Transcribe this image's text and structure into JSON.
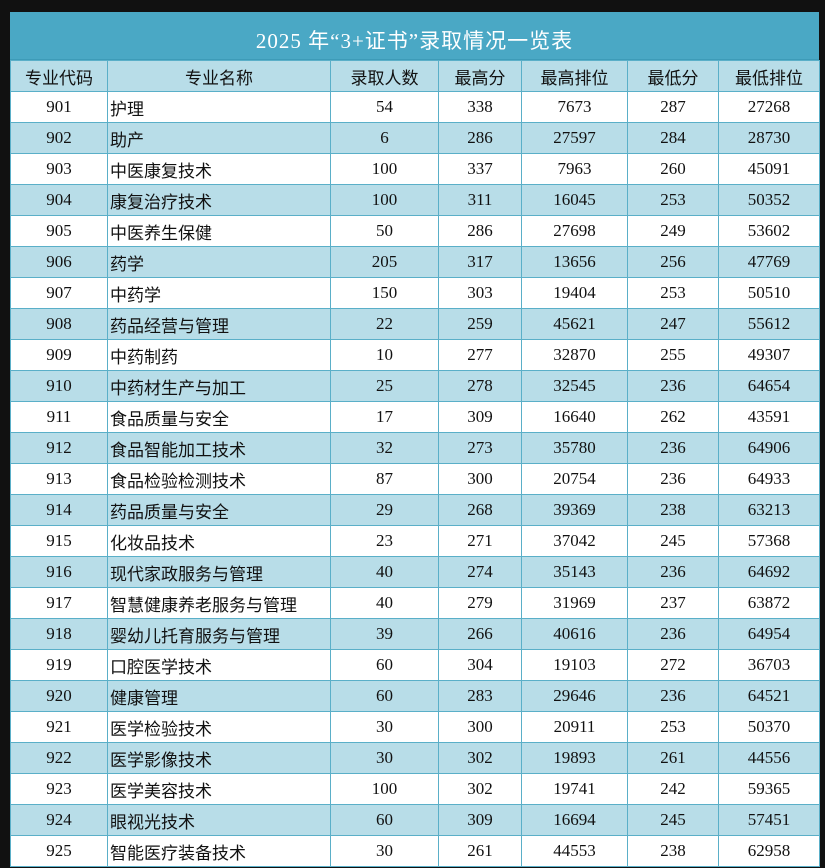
{
  "title": "2025 年“3+证书”录取情况一览表",
  "colors": {
    "title_bg": "#4aa8c5",
    "header_bg": "#b8dde8",
    "alt_row_bg": "#b8dde8",
    "grid": "#5aafc8"
  },
  "table": {
    "headers": [
      "专业代码",
      "专业名称",
      "录取人数",
      "最高分",
      "最高排位",
      "最低分",
      "最低排位"
    ],
    "rows": [
      [
        "901",
        "护理",
        "54",
        "338",
        "7673",
        "287",
        "27268"
      ],
      [
        "902",
        "助产",
        "6",
        "286",
        "27597",
        "284",
        "28730"
      ],
      [
        "903",
        "中医康复技术",
        "100",
        "337",
        "7963",
        "260",
        "45091"
      ],
      [
        "904",
        "康复治疗技术",
        "100",
        "311",
        "16045",
        "253",
        "50352"
      ],
      [
        "905",
        "中医养生保健",
        "50",
        "286",
        "27698",
        "249",
        "53602"
      ],
      [
        "906",
        "药学",
        "205",
        "317",
        "13656",
        "256",
        "47769"
      ],
      [
        "907",
        "中药学",
        "150",
        "303",
        "19404",
        "253",
        "50510"
      ],
      [
        "908",
        "药品经营与管理",
        "22",
        "259",
        "45621",
        "247",
        "55612"
      ],
      [
        "909",
        "中药制药",
        "10",
        "277",
        "32870",
        "255",
        "49307"
      ],
      [
        "910",
        "中药材生产与加工",
        "25",
        "278",
        "32545",
        "236",
        "64654"
      ],
      [
        "911",
        "食品质量与安全",
        "17",
        "309",
        "16640",
        "262",
        "43591"
      ],
      [
        "912",
        "食品智能加工技术",
        "32",
        "273",
        "35780",
        "236",
        "64906"
      ],
      [
        "913",
        "食品检验检测技术",
        "87",
        "300",
        "20754",
        "236",
        "64933"
      ],
      [
        "914",
        "药品质量与安全",
        "29",
        "268",
        "39369",
        "238",
        "63213"
      ],
      [
        "915",
        "化妆品技术",
        "23",
        "271",
        "37042",
        "245",
        "57368"
      ],
      [
        "916",
        "现代家政服务与管理",
        "40",
        "274",
        "35143",
        "236",
        "64692"
      ],
      [
        "917",
        "智慧健康养老服务与管理",
        "40",
        "279",
        "31969",
        "237",
        "63872"
      ],
      [
        "918",
        "婴幼儿托育服务与管理",
        "39",
        "266",
        "40616",
        "236",
        "64954"
      ],
      [
        "919",
        "口腔医学技术",
        "60",
        "304",
        "19103",
        "272",
        "36703"
      ],
      [
        "920",
        "健康管理",
        "60",
        "283",
        "29646",
        "236",
        "64521"
      ],
      [
        "921",
        "医学检验技术",
        "30",
        "300",
        "20911",
        "253",
        "50370"
      ],
      [
        "922",
        "医学影像技术",
        "30",
        "302",
        "19893",
        "261",
        "44556"
      ],
      [
        "923",
        "医学美容技术",
        "100",
        "302",
        "19741",
        "242",
        "59365"
      ],
      [
        "924",
        "眼视光技术",
        "60",
        "309",
        "16694",
        "245",
        "57451"
      ],
      [
        "925",
        "智能医疗装备技术",
        "30",
        "261",
        "44553",
        "238",
        "62958"
      ]
    ]
  }
}
